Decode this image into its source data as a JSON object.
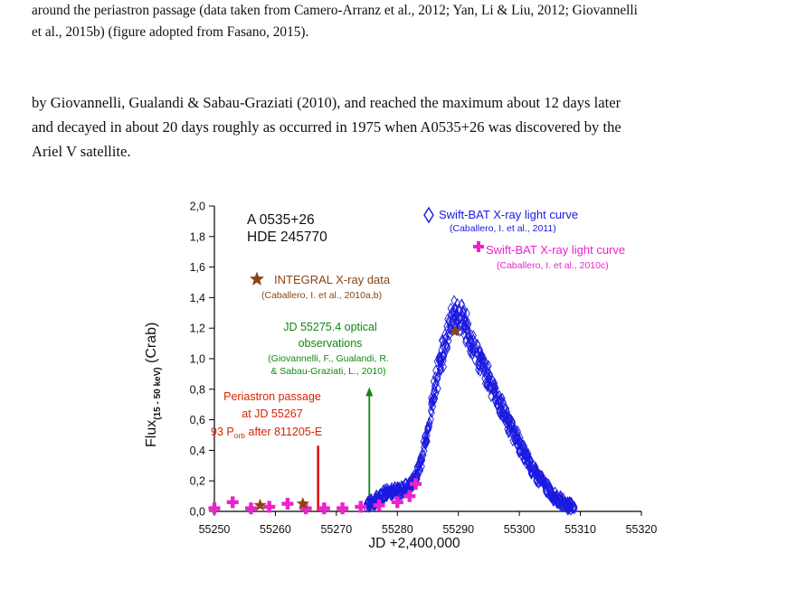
{
  "caption": {
    "line1": "around the periastron passage (data taken from Camero-Arranz et al., 2012; Yan, Li & Liu, 2012; Giovannelli",
    "line2": "et al., 2015b) (figure adopted from Fasano, 2015)."
  },
  "body": {
    "line1": "by Giovannelli, Gualandi & Sabau-Graziati (2010), and reached the maximum about 12 days later",
    "line2": "and decayed in about 20 days roughly as occurred in 1975 when A0535+26 was discovered by the",
    "line3": "Ariel V satellite."
  },
  "figure": {
    "object_line1": "A 0535+26",
    "object_line2": "HDE 245770",
    "legend": {
      "bat_2011_title": "Swift-BAT X-ray light curve",
      "bat_2011_ref": "(Caballero, I. et al., 2011)",
      "bat_2010c_title": "Swift-BAT X-ray light curve",
      "bat_2010c_ref": "(Caballero, I. et al., 2010c)",
      "integral_title": "INTEGRAL X-ray data",
      "integral_ref": "(Caballero, I. et al., 2010a,b)"
    },
    "optical": {
      "line1": "JD 55275.4 optical",
      "line2": "observations",
      "line3": "(Giovannelli, F., Gualandi, R.",
      "line4": "& Sabau-Graziati, L., 2010)"
    },
    "periastron": {
      "line1": "Periastron passage",
      "line2": "at JD 55267",
      "line3_num": "93 P",
      "line3_sub": "orb",
      "line3_rest": " after 811205-E"
    },
    "ylabel_main": "Flux",
    "ylabel_sub": "(15 - 50 keV)",
    "ylabel_unit": " (Crab)",
    "xlabel": "JD +2,400,000"
  },
  "chart_data": {
    "type": "scatter",
    "xlabel": "JD +2,400,000",
    "ylabel": "Flux(15 - 50 keV) (Crab)",
    "xlim": [
      55250,
      55320
    ],
    "ylim": [
      0.0,
      2.0
    ],
    "x_ticks": [
      55250,
      55260,
      55270,
      55280,
      55290,
      55300,
      55310,
      55320
    ],
    "x_tick_labels": [
      "55250",
      "55260",
      "55270",
      "55280",
      "55290",
      "55300",
      "55310",
      "55320"
    ],
    "y_ticks": [
      0.0,
      0.2,
      0.4,
      0.6,
      0.8,
      1.0,
      1.2,
      1.4,
      1.6,
      1.8,
      2.0
    ],
    "y_tick_labels": [
      "0,0",
      "0,2",
      "0,4",
      "0,6",
      "0,8",
      "1,0",
      "1,2",
      "1,4",
      "1,6",
      "1,8",
      "2,0"
    ],
    "series": [
      {
        "name": "Swift-BAT X-ray light curve (Caballero, I. et al., 2011)",
        "marker": "diamond",
        "color": "#1a1adf",
        "x": [
          55275,
          55276,
          55277,
          55278,
          55279,
          55280,
          55281,
          55282,
          55283,
          55284,
          55285,
          55286,
          55287,
          55288,
          55289,
          55290,
          55291,
          55292,
          55293,
          55294,
          55295,
          55296,
          55297,
          55298,
          55299,
          55300,
          55301,
          55302,
          55303,
          55304,
          55305,
          55306,
          55307,
          55308,
          55309
        ],
        "y": [
          0.05,
          0.06,
          0.09,
          0.12,
          0.14,
          0.13,
          0.14,
          0.17,
          0.22,
          0.34,
          0.55,
          0.78,
          0.98,
          1.14,
          1.24,
          1.32,
          1.22,
          1.12,
          1.04,
          0.95,
          0.87,
          0.78,
          0.68,
          0.6,
          0.52,
          0.44,
          0.36,
          0.29,
          0.23,
          0.18,
          0.13,
          0.09,
          0.06,
          0.04,
          0.03
        ]
      },
      {
        "name": "Swift-BAT X-ray light curve (Caballero, I. et al., 2010c)",
        "marker": "plus",
        "color": "#ee22cc",
        "x": [
          55250,
          55253,
          55256,
          55259,
          55262,
          55265,
          55268,
          55271,
          55274,
          55277,
          55280,
          55282,
          55283
        ],
        "y": [
          0.02,
          0.06,
          0.02,
          0.03,
          0.05,
          0.02,
          0.02,
          0.02,
          0.03,
          0.04,
          0.06,
          0.1,
          0.18
        ]
      },
      {
        "name": "INTEGRAL X-ray data (Caballero, I. et al., 2010a,b)",
        "marker": "star",
        "color": "#8b4513",
        "x": [
          55257.5,
          55264.5,
          55289.5
        ],
        "y": [
          0.04,
          0.05,
          1.18
        ]
      }
    ],
    "annotations": [
      {
        "label": "Periastron passage at JD 55267",
        "x": 55267,
        "color": "#dd0000"
      },
      {
        "label": "JD 55275.4 optical observations",
        "x": 55275.4,
        "color": "#118811"
      }
    ]
  }
}
